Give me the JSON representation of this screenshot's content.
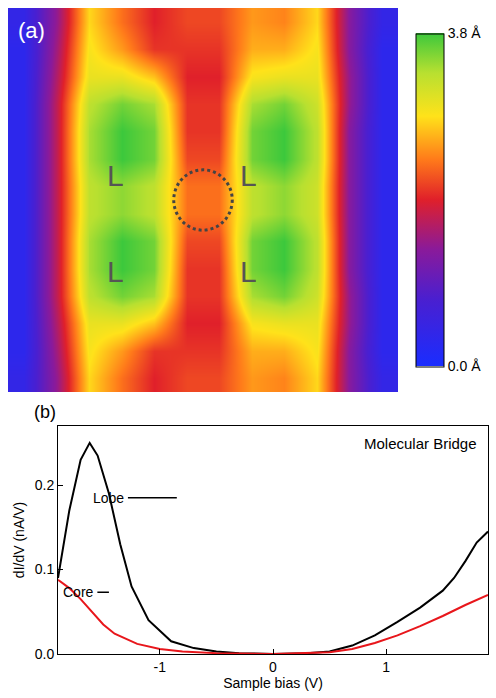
{
  "chart_data": [
    {
      "type": "heatmap",
      "panel_label": "(a)",
      "tick_labels": false,
      "cells": [
        [
          0.4,
          1.4,
          2.8,
          2.3,
          1.9,
          2.1,
          2.1,
          2.5,
          2.4,
          2.8,
          1.3,
          0.4
        ],
        [
          0.3,
          1.5,
          2.9,
          2.5,
          2.0,
          2.0,
          2.0,
          2.6,
          2.6,
          2.9,
          1.3,
          0.3
        ],
        [
          0.3,
          1.6,
          3.0,
          3.0,
          2.7,
          1.9,
          1.9,
          2.9,
          3.0,
          3.0,
          1.4,
          0.3
        ],
        [
          0.3,
          1.7,
          3.3,
          3.6,
          3.4,
          2.0,
          2.0,
          3.4,
          3.6,
          3.2,
          1.4,
          0.3
        ],
        [
          0.3,
          1.7,
          3.4,
          3.8,
          3.6,
          2.0,
          2.0,
          3.6,
          3.8,
          3.3,
          1.3,
          0.3
        ],
        [
          0.3,
          1.7,
          3.4,
          3.8,
          3.6,
          2.1,
          2.1,
          3.6,
          3.8,
          3.3,
          1.3,
          0.3
        ],
        [
          0.3,
          1.7,
          3.3,
          3.5,
          3.3,
          2.3,
          2.3,
          3.3,
          3.5,
          3.2,
          1.3,
          0.3
        ],
        [
          0.3,
          1.7,
          3.3,
          3.5,
          3.3,
          2.3,
          2.3,
          3.3,
          3.5,
          3.2,
          1.3,
          0.3
        ],
        [
          0.3,
          1.7,
          3.4,
          3.8,
          3.6,
          2.1,
          2.1,
          3.6,
          3.8,
          3.3,
          1.3,
          0.3
        ],
        [
          0.3,
          1.7,
          3.4,
          3.8,
          3.6,
          2.0,
          2.0,
          3.6,
          3.8,
          3.3,
          1.3,
          0.3
        ],
        [
          0.3,
          1.7,
          3.3,
          3.6,
          3.4,
          2.0,
          2.0,
          3.4,
          3.6,
          3.2,
          1.4,
          0.3
        ],
        [
          0.3,
          1.6,
          3.0,
          3.0,
          2.7,
          1.9,
          1.9,
          2.9,
          3.0,
          3.0,
          1.4,
          0.3
        ],
        [
          0.3,
          1.5,
          2.9,
          2.5,
          2.0,
          2.0,
          2.0,
          2.6,
          2.6,
          2.9,
          1.3,
          0.3
        ],
        [
          0.4,
          1.4,
          2.8,
          2.3,
          1.9,
          2.1,
          2.1,
          2.5,
          2.4,
          2.8,
          1.3,
          0.4
        ]
      ],
      "colorbar": {
        "range": [
          0,
          3.8
        ],
        "ticks": [
          {
            "value": 0,
            "label": "0.0 Å"
          },
          {
            "value": 3.8,
            "label": "3.8 Å"
          }
        ]
      },
      "annotations": [
        {
          "text": "L",
          "x": 2.8,
          "y": 5.6
        },
        {
          "text": "L",
          "x": 6.9,
          "y": 5.6
        },
        {
          "text": "L",
          "x": 2.8,
          "y": 9.1
        },
        {
          "text": "L",
          "x": 6.9,
          "y": 9.1
        }
      ]
    },
    {
      "type": "line",
      "panel_label": "(b)",
      "title": "Molecular Bridge",
      "xlabel": "Sample bias (V)",
      "ylabel": "dI/dV (nA/V)",
      "xlim": [
        -1.9,
        1.9
      ],
      "xticks": [
        -1,
        0,
        1
      ],
      "ylim": [
        0,
        0.27
      ],
      "yticks": [
        {
          "value": 0,
          "label": "0.0"
        },
        0.1,
        0.2
      ],
      "series": [
        {
          "name": "Lobe",
          "color": "#000000",
          "x": [
            -1.9,
            -1.8,
            -1.7,
            -1.62,
            -1.55,
            -1.45,
            -1.35,
            -1.25,
            -1.1,
            -0.9,
            -0.7,
            -0.5,
            -0.3,
            0,
            0.3,
            0.5,
            0.7,
            0.9,
            1.1,
            1.3,
            1.5,
            1.6,
            1.7,
            1.8,
            1.9
          ],
          "values": [
            0.09,
            0.17,
            0.23,
            0.25,
            0.235,
            0.19,
            0.13,
            0.08,
            0.04,
            0.015,
            0.007,
            0.003,
            0.001,
            0,
            0.001,
            0.003,
            0.01,
            0.022,
            0.038,
            0.055,
            0.075,
            0.09,
            0.11,
            0.132,
            0.145
          ]
        },
        {
          "name": "Core",
          "color": "#e8161b",
          "x": [
            -1.9,
            -1.8,
            -1.7,
            -1.6,
            -1.5,
            -1.4,
            -1.2,
            -1.0,
            -0.8,
            -0.5,
            0,
            0.5,
            0.7,
            0.9,
            1.1,
            1.3,
            1.5,
            1.7,
            1.9
          ],
          "values": [
            0.088,
            0.078,
            0.065,
            0.05,
            0.035,
            0.024,
            0.012,
            0.006,
            0.003,
            0.001,
            0,
            0.002,
            0.006,
            0.013,
            0.022,
            0.033,
            0.045,
            0.058,
            0.07
          ]
        }
      ],
      "annotations": [
        {
          "text": "Lobe",
          "x": -0.85,
          "y": 0.185,
          "ax": -1.45,
          "ay": 0.185
        },
        {
          "text": "Core",
          "x": -1.45,
          "y": 0.073,
          "ax": -1.72,
          "ay": 0.073
        }
      ]
    }
  ]
}
